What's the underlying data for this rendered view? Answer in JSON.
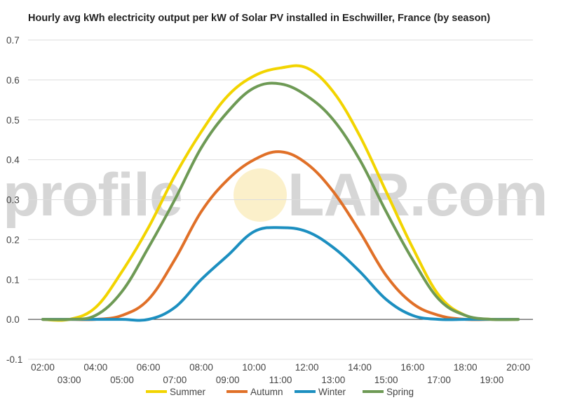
{
  "chart_data": {
    "type": "line",
    "title": "Hourly avg kWh electricity output per kW of Solar PV installed in Eschwiller, France (by season)",
    "xlabel": "",
    "ylabel": "",
    "categories": [
      "02:00",
      "03:00",
      "04:00",
      "05:00",
      "06:00",
      "07:00",
      "08:00",
      "09:00",
      "10:00",
      "11:00",
      "12:00",
      "13:00",
      "14:00",
      "15:00",
      "16:00",
      "17:00",
      "18:00",
      "19:00",
      "20:00"
    ],
    "y_ticks": [
      "-0.1",
      "0.0",
      "0.1",
      "0.2",
      "0.3",
      "0.4",
      "0.5",
      "0.6",
      "0.7"
    ],
    "ylim": [
      -0.1,
      0.7
    ],
    "grid": true,
    "legend_position": "bottom",
    "series": [
      {
        "name": "Summer",
        "color": "#f2d400",
        "values": [
          0.0,
          0.0,
          0.03,
          0.12,
          0.23,
          0.36,
          0.47,
          0.56,
          0.61,
          0.63,
          0.63,
          0.57,
          0.46,
          0.32,
          0.18,
          0.06,
          0.01,
          0.0,
          0.0
        ]
      },
      {
        "name": "Autumn",
        "color": "#e07028",
        "values": [
          0.0,
          0.0,
          0.0,
          0.01,
          0.05,
          0.15,
          0.27,
          0.35,
          0.4,
          0.42,
          0.39,
          0.32,
          0.22,
          0.11,
          0.04,
          0.01,
          0.0,
          0.0,
          0.0
        ]
      },
      {
        "name": "Winter",
        "color": "#1c8fc0",
        "values": [
          0.0,
          0.0,
          0.0,
          0.0,
          0.0,
          0.03,
          0.1,
          0.16,
          0.22,
          0.23,
          0.22,
          0.18,
          0.12,
          0.05,
          0.01,
          0.0,
          0.0,
          0.0,
          0.0
        ]
      },
      {
        "name": "Spring",
        "color": "#6e9a55",
        "values": [
          0.0,
          0.0,
          0.01,
          0.07,
          0.18,
          0.3,
          0.43,
          0.52,
          0.58,
          0.59,
          0.56,
          0.5,
          0.4,
          0.27,
          0.15,
          0.05,
          0.01,
          0.0,
          0.0
        ]
      }
    ],
    "watermark": {
      "text_left": "profile",
      "text_right": "LAR.com"
    }
  }
}
